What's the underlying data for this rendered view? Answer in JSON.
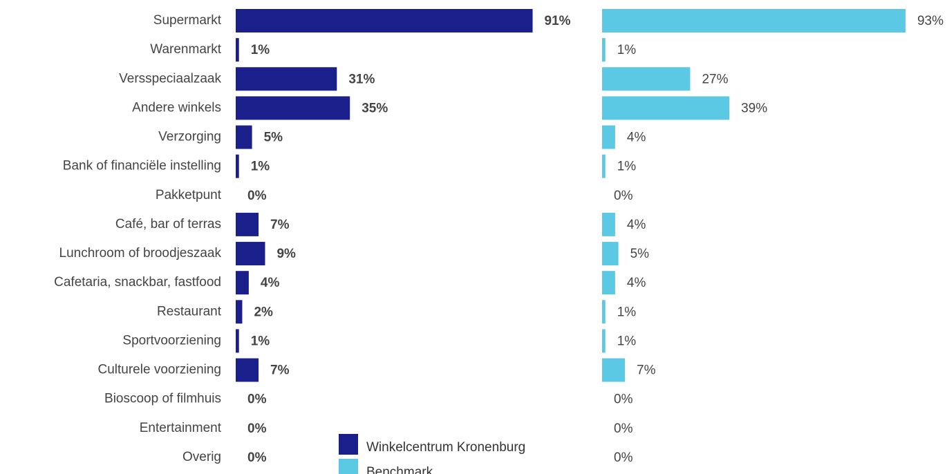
{
  "chart_data": {
    "type": "bar",
    "orientation": "horizontal",
    "categories": [
      "Supermarkt",
      "Warenmarkt",
      "Versspeciaalzaak",
      "Andere winkels",
      "Verzorging",
      "Bank of financiële instelling",
      "Pakketpunt",
      "Café, bar of terras",
      "Lunchroom of broodjeszaak",
      "Cafetaria, snackbar, fastfood",
      "Restaurant",
      "Sportvoorziening",
      "Culturele voorziening",
      "Bioscoop of filmhuis",
      "Entertainment",
      "Overig"
    ],
    "series": [
      {
        "name": "Winkelcentrum Kronenburg",
        "color": "#1a1f8c",
        "values": [
          91,
          1,
          31,
          35,
          5,
          1,
          0,
          7,
          9,
          4,
          2,
          1,
          7,
          0,
          0,
          0
        ],
        "value_labels": [
          "91%",
          "1%",
          "31%",
          "35%",
          "5%",
          "1%",
          "0%",
          "7%",
          "9%",
          "4%",
          "2%",
          "1%",
          "7%",
          "0%",
          "0%",
          "0%"
        ]
      },
      {
        "name": "Benchmark",
        "color": "#5bc8e4",
        "values": [
          93,
          1,
          27,
          39,
          4,
          1,
          0,
          4,
          5,
          4,
          1,
          1,
          7,
          0,
          0,
          0
        ],
        "value_labels": [
          "93%",
          "1%",
          "27%",
          "39%",
          "4%",
          "1%",
          "0%",
          "4%",
          "5%",
          "4%",
          "1%",
          "1%",
          "7%",
          "0%",
          "0%",
          "0%"
        ]
      }
    ],
    "legend": "bottom"
  }
}
